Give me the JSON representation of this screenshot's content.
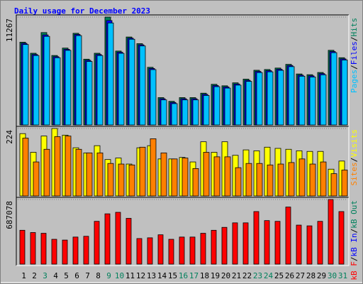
{
  "legend_separator": "/",
  "chart_data": [
    {
      "type": "bar",
      "title": "Daily usage for December 2023",
      "ylim": [
        0,
        11267
      ],
      "yticks": [
        11267
      ],
      "series": [
        {
          "name": "Pages",
          "color": "#00c0ff",
          "values": [
            8400,
            7250,
            9250,
            7020,
            7790,
            9330,
            6630,
            7250,
            10650,
            7480,
            8950,
            8250,
            5780,
            2620,
            2230,
            2620,
            2620,
            3080,
            4000,
            3850,
            4160,
            4550,
            5470,
            5550,
            5700,
            6090,
            5090,
            5010,
            5240,
            7550,
            6780
          ]
        },
        {
          "name": "Files",
          "color": "#0000ff",
          "values": [
            8520,
            7360,
            9400,
            7130,
            7900,
            9450,
            6750,
            7360,
            10900,
            7600,
            9060,
            8370,
            5900,
            2740,
            2350,
            2740,
            2740,
            3200,
            4120,
            3970,
            4280,
            4660,
            5590,
            5670,
            5820,
            6210,
            5200,
            5130,
            5360,
            7670,
            6900
          ]
        },
        {
          "name": "Hits",
          "color": "#00805c",
          "values": [
            8643,
            7486,
            9646,
            7254,
            8026,
            9569,
            6868,
            7486,
            11267,
            7717,
            9183,
            8489,
            6019,
            2855,
            2469,
            2855,
            2855,
            3318,
            4244,
            4090,
            4399,
            4785,
            5711,
            5788,
            5942,
            6328,
            5325,
            5248,
            5479,
            7794,
            7022
          ]
        }
      ]
    },
    {
      "type": "bar",
      "ylim": [
        0,
        224
      ],
      "yticks": [
        224
      ],
      "series": [
        {
          "name": "Sites",
          "color": "#ff8000",
          "values": [
            192,
            113,
            155,
            197,
            199,
            155,
            143,
            143,
            108,
            106,
            103,
            162,
            190,
            143,
            123,
            126,
            91,
            145,
            130,
            130,
            94,
            108,
            108,
            103,
            106,
            111,
            123,
            106,
            113,
            74,
            86
          ]
        },
        {
          "name": "Visits",
          "color": "#ffff00",
          "values": [
            207,
            145,
            199,
            224,
            202,
            160,
            143,
            167,
            121,
            126,
            106,
            160,
            167,
            123,
            123,
            128,
            113,
            180,
            145,
            180,
            135,
            153,
            150,
            162,
            158,
            155,
            150,
            148,
            148,
            89,
            116
          ]
        }
      ]
    },
    {
      "type": "bar",
      "ylim": [
        0,
        687078
      ],
      "yticks": [
        687078
      ],
      "categories": [
        "1",
        "2",
        "3",
        "4",
        "5",
        "6",
        "7",
        "8",
        "9",
        "10",
        "11",
        "12",
        "13",
        "14",
        "15",
        "16",
        "17",
        "18",
        "19",
        "20",
        "21",
        "22",
        "23",
        "24",
        "25",
        "26",
        "27",
        "28",
        "29",
        "30",
        "31"
      ],
      "category_colors": [
        "#000000",
        "#000000",
        "#00805c",
        "#000000",
        "#000000",
        "#000000",
        "#000000",
        "#000000",
        "#00805c",
        "#00805c",
        "#000000",
        "#000000",
        "#000000",
        "#000000",
        "#000000",
        "#00805c",
        "#00805c",
        "#000000",
        "#000000",
        "#000000",
        "#000000",
        "#000000",
        "#00805c",
        "#00805c",
        "#000000",
        "#000000",
        "#000000",
        "#000000",
        "#000000",
        "#00805c",
        "#00805c"
      ],
      "series": [
        {
          "name": "kB F",
          "color": "#ff0000",
          "values": [
            360000,
            336000,
            328000,
            264000,
            256000,
            288000,
            296000,
            455000,
            535000,
            551000,
            487000,
            272000,
            280000,
            312000,
            264000,
            288000,
            288000,
            328000,
            360000,
            391000,
            439000,
            439000,
            559000,
            463000,
            455000,
            607000,
            415000,
            407000,
            455000,
            687078,
            559000
          ]
        },
        {
          "name": "kB In",
          "color": "#0000ff",
          "values": [
            0,
            0,
            0,
            0,
            0,
            0,
            0,
            0,
            0,
            0,
            0,
            0,
            0,
            0,
            0,
            0,
            0,
            0,
            0,
            0,
            0,
            0,
            0,
            0,
            0,
            0,
            0,
            0,
            0,
            0,
            0
          ]
        },
        {
          "name": "kB Out",
          "color": "#00805c",
          "values": [
            0,
            0,
            0,
            0,
            0,
            0,
            0,
            0,
            0,
            0,
            0,
            0,
            0,
            0,
            0,
            0,
            0,
            0,
            0,
            0,
            0,
            0,
            0,
            0,
            0,
            0,
            0,
            0,
            0,
            0,
            0
          ]
        }
      ]
    }
  ]
}
